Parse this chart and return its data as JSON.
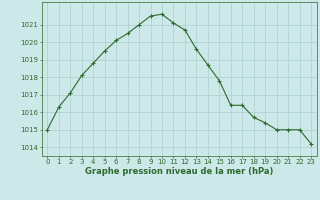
{
  "x": [
    0,
    1,
    2,
    3,
    4,
    5,
    6,
    7,
    8,
    9,
    10,
    11,
    12,
    13,
    14,
    15,
    16,
    17,
    18,
    19,
    20,
    21,
    22,
    23
  ],
  "y": [
    1015.0,
    1016.3,
    1017.1,
    1018.1,
    1018.8,
    1019.5,
    1020.1,
    1020.5,
    1021.0,
    1021.5,
    1021.6,
    1021.1,
    1020.7,
    1019.6,
    1018.7,
    1017.8,
    1016.4,
    1016.4,
    1015.7,
    1015.4,
    1015.0,
    1015.0,
    1015.0,
    1014.2
  ],
  "line_color": "#2d6a2d",
  "marker": "+",
  "bg_color": "#cce8e8",
  "grid_color": "#aacfcf",
  "xlabel": "Graphe pression niveau de la mer (hPa)",
  "xlabel_color": "#2d6a2d",
  "tick_color": "#2d6a2d",
  "xlim": [
    -0.5,
    23.5
  ],
  "ylim": [
    1013.5,
    1022.3
  ],
  "yticks": [
    1014,
    1015,
    1016,
    1017,
    1018,
    1019,
    1020,
    1021
  ],
  "xticks": [
    0,
    1,
    2,
    3,
    4,
    5,
    6,
    7,
    8,
    9,
    10,
    11,
    12,
    13,
    14,
    15,
    16,
    17,
    18,
    19,
    20,
    21,
    22,
    23
  ],
  "fontsize_ticks": 5.0,
  "fontsize_xlabel": 6.0,
  "linewidth": 0.8,
  "markersize": 3.5,
  "markeredgewidth": 0.8
}
